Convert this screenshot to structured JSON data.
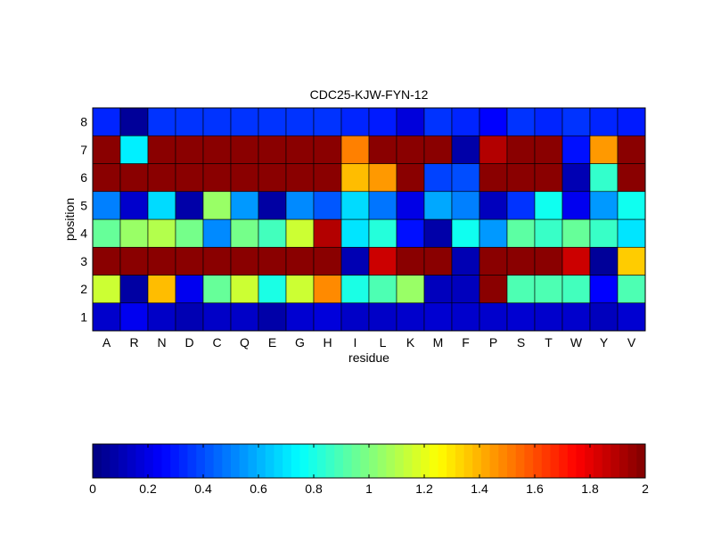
{
  "chart_data": [
    {
      "type": "heatmap",
      "title": "CDC25-KJW-FYN-12",
      "xlabel": "residue",
      "ylabel": "position",
      "columns": [
        "A",
        "R",
        "N",
        "D",
        "C",
        "Q",
        "E",
        "G",
        "H",
        "I",
        "L",
        "K",
        "M",
        "F",
        "P",
        "S",
        "T",
        "W",
        "Y",
        "V"
      ],
      "rows": [
        "1",
        "2",
        "3",
        "4",
        "5",
        "6",
        "7",
        "8"
      ],
      "values": [
        [
          0.15,
          0.22,
          0.14,
          0.1,
          0.14,
          0.14,
          0.08,
          0.16,
          0.18,
          0.14,
          0.14,
          0.15,
          0.16,
          0.15,
          0.15,
          0.16,
          0.15,
          0.15,
          0.12,
          0.16
        ],
        [
          1.15,
          0.07,
          1.38,
          0.22,
          0.95,
          1.15,
          0.8,
          1.15,
          1.48,
          0.8,
          0.9,
          1.05,
          0.12,
          0.12,
          1.98,
          0.9,
          0.9,
          0.88,
          0.25,
          0.9
        ],
        [
          1.98,
          1.98,
          1.98,
          1.98,
          1.98,
          1.98,
          1.98,
          1.98,
          1.98,
          0.1,
          1.85,
          1.98,
          1.98,
          0.1,
          1.98,
          1.98,
          1.98,
          1.85,
          0.05,
          1.35
        ],
        [
          0.95,
          1.05,
          1.1,
          0.98,
          0.52,
          0.98,
          0.88,
          1.15,
          1.9,
          0.7,
          0.82,
          0.28,
          0.08,
          0.78,
          0.55,
          0.93,
          0.86,
          0.95,
          0.86,
          0.7
        ],
        [
          0.5,
          0.15,
          0.68,
          0.08,
          1.05,
          0.55,
          0.07,
          0.52,
          0.42,
          0.68,
          0.48,
          0.2,
          0.58,
          0.5,
          0.12,
          0.35,
          0.78,
          0.22,
          0.55,
          0.78
        ],
        [
          1.98,
          1.98,
          1.98,
          1.98,
          1.98,
          1.98,
          1.98,
          1.98,
          1.98,
          1.38,
          1.45,
          1.98,
          0.38,
          0.4,
          1.98,
          1.98,
          1.98,
          0.1,
          0.85,
          1.98
        ],
        [
          1.98,
          0.72,
          1.98,
          1.98,
          1.98,
          1.98,
          1.98,
          1.98,
          1.98,
          1.5,
          1.98,
          1.98,
          1.98,
          0.08,
          1.9,
          1.98,
          1.98,
          0.28,
          1.45,
          1.98
        ],
        [
          0.32,
          0.05,
          0.35,
          0.35,
          0.35,
          0.35,
          0.35,
          0.35,
          0.35,
          0.32,
          0.3,
          0.18,
          0.35,
          0.32,
          0.25,
          0.35,
          0.32,
          0.35,
          0.32,
          0.3
        ]
      ],
      "clim": [
        0,
        2
      ]
    },
    {
      "type": "colorbar",
      "range": [
        0,
        2
      ],
      "ticks": [
        "0",
        "0.2",
        "0.4",
        "0.6",
        "0.8",
        "1",
        "1.2",
        "1.4",
        "1.6",
        "1.8",
        "2"
      ]
    }
  ]
}
